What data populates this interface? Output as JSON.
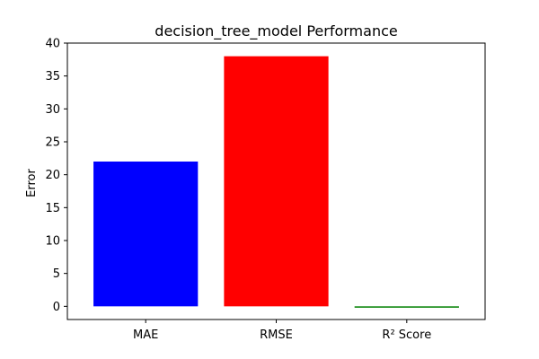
{
  "chart_data": {
    "type": "bar",
    "title": "decision_tree_model Performance",
    "xlabel": "",
    "ylabel": "Error",
    "categories": [
      "MAE",
      "RMSE",
      "R² Score"
    ],
    "values": [
      22,
      38,
      -0.1
    ],
    "colors": [
      "#0000ff",
      "#ff0000",
      "#008000"
    ],
    "ylim": [
      -2,
      40
    ],
    "yticks": [
      0,
      5,
      10,
      15,
      20,
      25,
      30,
      35,
      40
    ],
    "grid": false,
    "legend": "none"
  }
}
